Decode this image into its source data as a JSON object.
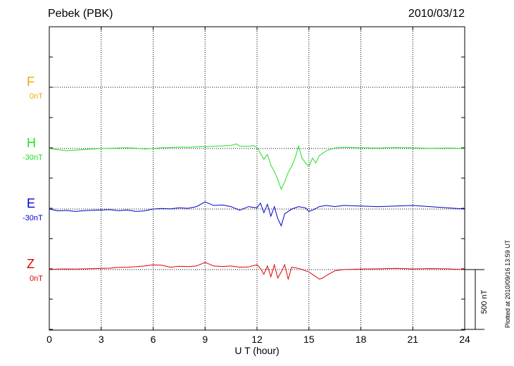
{
  "header": {
    "station": "Pebek (PBK)",
    "date": "2010/03/12"
  },
  "footer": {
    "plotted": "Plotted at 2010/09/16 13:59 UT"
  },
  "scale": {
    "label": "500 nT"
  },
  "colors": {
    "F": "#f0a800",
    "H": "#22dd22",
    "E": "#0000cc",
    "Z": "#dd0000",
    "axis": "#000000"
  },
  "chart_data": {
    "type": "line",
    "xlabel": "U T (hour)",
    "xlim": [
      0,
      24
    ],
    "xticks": [
      "0",
      "3",
      "6",
      "9",
      "12",
      "15",
      "18",
      "21",
      "24"
    ],
    "scale_bar_nT": 500,
    "channels": [
      {
        "name": "F",
        "offset_label": "0nT"
      },
      {
        "name": "H",
        "offset_label": "-30nT"
      },
      {
        "name": "E",
        "offset_label": "-30nT"
      },
      {
        "name": "Z",
        "offset_label": "0nT"
      }
    ],
    "series": [
      {
        "name": "H",
        "x": [
          0,
          0.5,
          1,
          1.5,
          2,
          2.5,
          3,
          3.5,
          4,
          4.5,
          5,
          5.5,
          6,
          6.5,
          7,
          7.5,
          8,
          8.5,
          9,
          9.5,
          10,
          10.5,
          10.8,
          11,
          11.5,
          11.8,
          12,
          12.2,
          12.4,
          12.6,
          12.8,
          13,
          13.2,
          13.4,
          13.6,
          13.8,
          14,
          14.2,
          14.4,
          14.6,
          14.8,
          15,
          15.2,
          15.4,
          15.6,
          15.8,
          16,
          16.5,
          17,
          17.5,
          18,
          19,
          20,
          21,
          22,
          23,
          24
        ],
        "y": [
          0,
          -10,
          -18,
          -14,
          -8,
          -4,
          0,
          2,
          5,
          6,
          3,
          -4,
          2,
          6,
          8,
          12,
          10,
          14,
          16,
          18,
          22,
          26,
          38,
          20,
          18,
          24,
          10,
          -40,
          -90,
          -50,
          -140,
          -190,
          -260,
          -340,
          -280,
          -200,
          -150,
          -80,
          20,
          -80,
          -120,
          -150,
          -80,
          -120,
          -60,
          -40,
          -20,
          5,
          10,
          8,
          6,
          4,
          8,
          6,
          2,
          4,
          0
        ]
      },
      {
        "name": "E",
        "x": [
          0,
          0.5,
          1,
          1.5,
          2,
          2.5,
          3,
          3.5,
          4,
          4.5,
          5,
          5.5,
          6,
          6.5,
          7,
          7.5,
          8,
          8.5,
          9,
          9.5,
          10,
          10.5,
          11,
          11.5,
          12,
          12.2,
          12.4,
          12.6,
          12.8,
          13,
          13.2,
          13.4,
          13.6,
          13.8,
          14,
          14.4,
          14.8,
          15,
          15.2,
          15.6,
          16,
          16.5,
          17,
          18,
          19,
          20,
          21,
          22,
          23,
          24
        ],
        "y": [
          0,
          -15,
          -12,
          -20,
          -14,
          -10,
          -8,
          -5,
          -14,
          -8,
          -20,
          -15,
          0,
          4,
          2,
          10,
          6,
          20,
          60,
          30,
          35,
          20,
          -10,
          20,
          10,
          50,
          -30,
          40,
          -60,
          20,
          -80,
          -140,
          -40,
          -20,
          0,
          20,
          10,
          -20,
          -10,
          20,
          30,
          20,
          30,
          25,
          20,
          25,
          30,
          20,
          10,
          0
        ]
      },
      {
        "name": "Z",
        "x": [
          0,
          0.5,
          1,
          1.5,
          2,
          2.5,
          3,
          3.5,
          4,
          4.5,
          5,
          5.5,
          6,
          6.5,
          7,
          7.5,
          8,
          8.5,
          9,
          9.5,
          10,
          10.5,
          11,
          11.5,
          12,
          12.2,
          12.4,
          12.6,
          12.8,
          13,
          13.2,
          13.4,
          13.6,
          13.8,
          14,
          14.4,
          14.8,
          15,
          15.2,
          15.4,
          15.6,
          15.8,
          16,
          16.5,
          17,
          18,
          19,
          20,
          21,
          22,
          23,
          24
        ],
        "y": [
          0,
          4,
          5,
          4,
          6,
          8,
          10,
          12,
          18,
          20,
          24,
          30,
          40,
          36,
          20,
          28,
          25,
          30,
          60,
          30,
          26,
          30,
          20,
          22,
          40,
          10,
          -40,
          30,
          -60,
          40,
          -70,
          -20,
          40,
          -80,
          20,
          10,
          -10,
          -20,
          -40,
          -60,
          -80,
          -70,
          -50,
          -10,
          0,
          4,
          6,
          10,
          5,
          8,
          6,
          0
        ]
      }
    ]
  }
}
